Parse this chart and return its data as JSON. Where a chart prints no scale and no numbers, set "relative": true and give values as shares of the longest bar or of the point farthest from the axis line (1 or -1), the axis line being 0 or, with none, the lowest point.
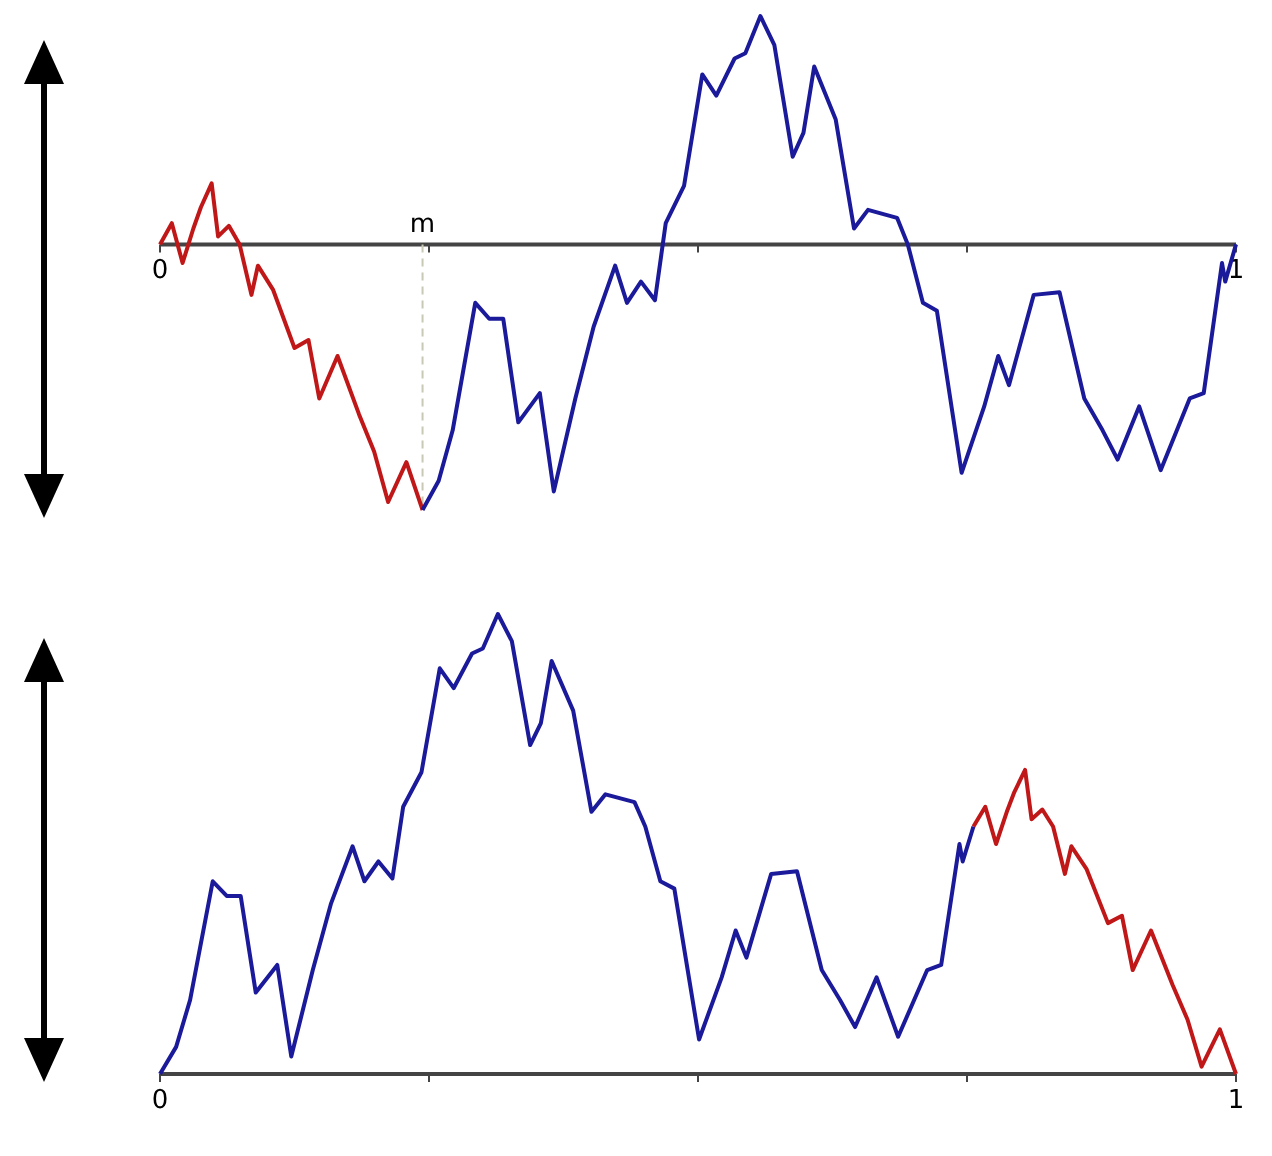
{
  "chart_data": [
    {
      "type": "line",
      "relative": true,
      "xlim": [
        0,
        1
      ],
      "xticks": [
        {
          "value": 0,
          "label": "0"
        },
        {
          "value": 0.25,
          "label": null
        },
        {
          "value": 0.5,
          "label": null
        },
        {
          "value": 0.75,
          "label": null
        },
        {
          "value": 1,
          "label": "1"
        }
      ],
      "ref_lines": [
        {
          "axis": "x",
          "value": 0.244,
          "label": "m",
          "color": "#c8c8b4",
          "line_style": "dashed"
        }
      ],
      "series": [
        {
          "color": "#c01818",
          "x": [
            0,
            0.011,
            0.021,
            0.031,
            0.038,
            0.048,
            0.054,
            0.064,
            0.074,
            0.085,
            0.091,
            0.105,
            0.125,
            0.138,
            0.148,
            0.165,
            0.185,
            0.199,
            0.212,
            0.229,
            0.244
          ],
          "values": [
            0,
            0.08,
            -0.07,
            0.06,
            0.14,
            0.23,
            0.03,
            0.07,
            0,
            -0.19,
            -0.08,
            -0.17,
            -0.39,
            -0.36,
            -0.58,
            -0.42,
            -0.64,
            -0.78,
            -0.97,
            -0.82,
            -1
          ]
        },
        {
          "color": "#1a1a9a",
          "x": [
            0.244,
            0.259,
            0.272,
            0.293,
            0.306,
            0.319,
            0.333,
            0.353,
            0.366,
            0.386,
            0.403,
            0.423,
            0.434,
            0.447,
            0.46,
            0.47,
            0.487,
            0.504,
            0.517,
            0.534,
            0.544,
            0.558,
            0.571,
            0.588,
            0.598,
            0.608,
            0.628,
            0.645,
            0.658,
            0.685,
            0.695,
            0.709,
            0.722,
            0.745,
            0.766,
            0.779,
            0.789,
            0.812,
            0.836,
            0.859,
            0.876,
            0.89,
            0.91,
            0.93,
            0.957,
            0.97,
            0.987,
            0.99,
            1
          ],
          "values": [
            -1,
            -0.89,
            -0.7,
            -0.22,
            -0.28,
            -0.28,
            -0.67,
            -0.56,
            -0.93,
            -0.58,
            -0.31,
            -0.08,
            -0.22,
            -0.14,
            -0.21,
            0.08,
            0.22,
            0.64,
            0.56,
            0.7,
            0.72,
            0.86,
            0.75,
            0.33,
            0.42,
            0.67,
            0.47,
            0.06,
            0.13,
            0.1,
            0,
            -0.22,
            -0.25,
            -0.86,
            -0.61,
            -0.42,
            -0.53,
            -0.19,
            -0.18,
            -0.58,
            -0.7,
            -0.81,
            -0.61,
            -0.85,
            -0.58,
            -0.56,
            -0.07,
            -0.14,
            0
          ]
        }
      ]
    },
    {
      "type": "line",
      "relative": true,
      "xlim": [
        0,
        1
      ],
      "xticks": [
        {
          "value": 0,
          "label": "0"
        },
        {
          "value": 0.25,
          "label": null
        },
        {
          "value": 0.5,
          "label": null
        },
        {
          "value": 0.75,
          "label": null
        },
        {
          "value": 1,
          "label": "1"
        }
      ],
      "series": [
        {
          "color": "#1a1a9a",
          "x": [
            0,
            0.015,
            0.028,
            0.049,
            0.062,
            0.075,
            0.089,
            0.109,
            0.122,
            0.142,
            0.159,
            0.179,
            0.19,
            0.203,
            0.216,
            0.226,
            0.243,
            0.26,
            0.273,
            0.29,
            0.3,
            0.314,
            0.327,
            0.344,
            0.354,
            0.364,
            0.384,
            0.401,
            0.414,
            0.441,
            0.451,
            0.465,
            0.478,
            0.501,
            0.522,
            0.535,
            0.545,
            0.568,
            0.592,
            0.615,
            0.632,
            0.646,
            0.666,
            0.686,
            0.713,
            0.726,
            0.743,
            0.746,
            0.756
          ],
          "values": [
            0,
            0.059,
            0.161,
            0.419,
            0.387,
            0.387,
            0.177,
            0.237,
            0.038,
            0.226,
            0.371,
            0.495,
            0.419,
            0.462,
            0.425,
            0.581,
            0.656,
            0.882,
            0.839,
            0.914,
            0.925,
            1,
            0.941,
            0.715,
            0.763,
            0.898,
            0.79,
            0.57,
            0.608,
            0.591,
            0.538,
            0.419,
            0.403,
            0.075,
            0.21,
            0.312,
            0.253,
            0.435,
            0.441,
            0.226,
            0.161,
            0.102,
            0.21,
            0.081,
            0.226,
            0.237,
            0.5,
            0.462,
            0.538
          ]
        },
        {
          "color": "#c01818",
          "x": [
            0.756,
            0.767,
            0.777,
            0.787,
            0.794,
            0.804,
            0.81,
            0.82,
            0.83,
            0.841,
            0.847,
            0.861,
            0.881,
            0.894,
            0.904,
            0.921,
            0.941,
            0.955,
            0.968,
            0.985,
            1
          ],
          "values": [
            0.538,
            0.581,
            0.5,
            0.57,
            0.613,
            0.661,
            0.554,
            0.575,
            0.538,
            0.435,
            0.495,
            0.446,
            0.328,
            0.344,
            0.226,
            0.312,
            0.194,
            0.118,
            0.016,
            0.097,
            0
          ]
        }
      ]
    }
  ]
}
